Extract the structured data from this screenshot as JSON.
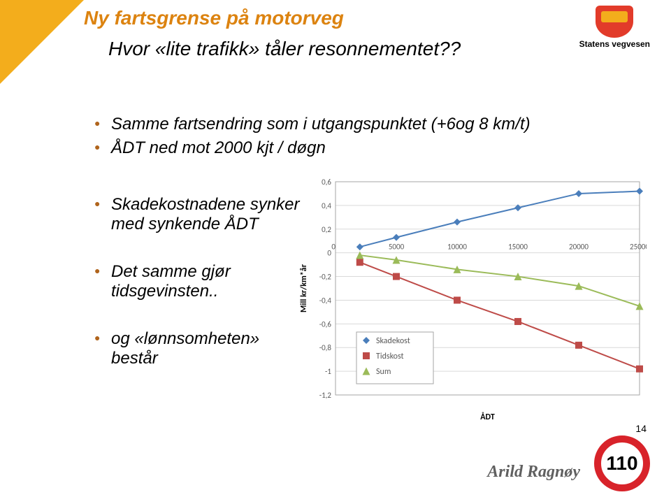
{
  "header": {
    "title_line1_color": "#dc8310",
    "title_line1": "Ny fartsgrense på motorveg",
    "title_line2": "Hvor «lite trafikk» tåler resonnementet??",
    "logo_caption": "Statens vegvesen"
  },
  "bullets_top": [
    "Samme fartsendring som i utgangspunktet (+6og 8 km/t)",
    "ÅDT ned mot 2000 kjt / døgn"
  ],
  "bullets_left": [
    "Skadekostnadene synker med synkende ÅDT",
    "Det samme gjør tidsgevinsten..",
    "og «lønnsomheten» består"
  ],
  "chart": {
    "type": "scatter-line",
    "background_color": "#ffffff",
    "plot_border_color": "#a6a6a6",
    "grid_color": "#d9d9d9",
    "font_family": "Calibri, Arial, sans-serif",
    "axis_font_size": 11,
    "ylabel": "Mill kr/km*år",
    "ylabel_fontsize": 12,
    "xlabel": "ÅDT",
    "xlabel_fontsize": 12,
    "xlim": [
      0,
      25000
    ],
    "ylim": [
      -1.2,
      0.6
    ],
    "xticks": [
      0,
      5000,
      10000,
      15000,
      20000,
      25000
    ],
    "yticks": [
      -1.2,
      -1,
      -0.8,
      -0.6,
      -0.4,
      -0.2,
      0,
      0.2,
      0.4,
      0.6
    ],
    "series": [
      {
        "name": "Skadekost",
        "color": "#4a7ebb",
        "marker": "diamond",
        "marker_size": 10,
        "points": [
          {
            "x": 2000,
            "y": 0.05
          },
          {
            "x": 5000,
            "y": 0.13
          },
          {
            "x": 10000,
            "y": 0.26
          },
          {
            "x": 15000,
            "y": 0.38
          },
          {
            "x": 20000,
            "y": 0.5
          },
          {
            "x": 25000,
            "y": 0.52
          }
        ]
      },
      {
        "name": "Tidskost",
        "color": "#be4b48",
        "marker": "square",
        "marker_size": 10,
        "points": [
          {
            "x": 2000,
            "y": -0.08
          },
          {
            "x": 5000,
            "y": -0.2
          },
          {
            "x": 10000,
            "y": -0.4
          },
          {
            "x": 15000,
            "y": -0.58
          },
          {
            "x": 20000,
            "y": -0.78
          },
          {
            "x": 25000,
            "y": -0.98
          }
        ]
      },
      {
        "name": "Sum",
        "color": "#9bbb59",
        "marker": "triangle",
        "marker_size": 11,
        "points": [
          {
            "x": 2000,
            "y": -0.02
          },
          {
            "x": 5000,
            "y": -0.06
          },
          {
            "x": 10000,
            "y": -0.14
          },
          {
            "x": 15000,
            "y": -0.2
          },
          {
            "x": 20000,
            "y": -0.28
          },
          {
            "x": 25000,
            "y": -0.45
          }
        ]
      }
    ],
    "legend": {
      "position": "inside-bottom-left",
      "border_color": "#a6a6a6",
      "font_size": 12
    }
  },
  "footer": {
    "author": "Arild Ragnøy",
    "author_color": "#606060",
    "page_number": "14",
    "badge_value": "110"
  }
}
